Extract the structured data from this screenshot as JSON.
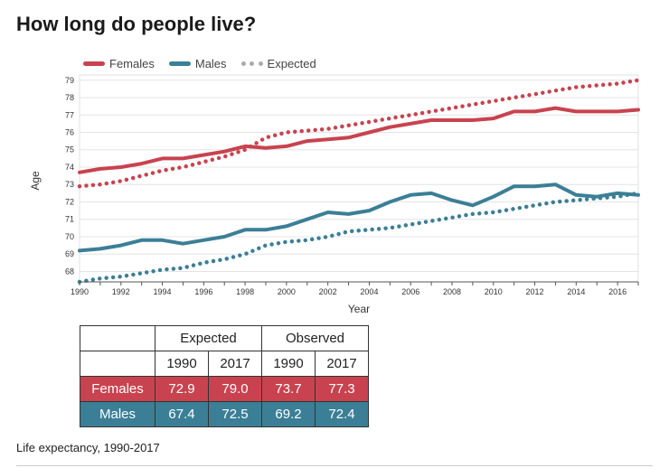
{
  "page": {
    "title": "How long do people live?",
    "caption": "Life expectancy, 1990-2017"
  },
  "legend": [
    {
      "label": "Females",
      "color": "#c8434f",
      "style": "solid"
    },
    {
      "label": "Males",
      "color": "#3b7f96",
      "style": "solid"
    },
    {
      "label": "Expected",
      "color": "#aaaaaa",
      "style": "dotted"
    }
  ],
  "table": {
    "groups": [
      "Expected",
      "Observed"
    ],
    "years": [
      "1990",
      "2017",
      "1990",
      "2017"
    ],
    "rows": [
      {
        "label": "Females",
        "values": [
          "72.9",
          "79.0",
          "73.7",
          "77.3"
        ],
        "color": "#c8434f"
      },
      {
        "label": "Males",
        "values": [
          "67.4",
          "72.5",
          "69.2",
          "72.4"
        ],
        "color": "#3b7f96"
      }
    ]
  },
  "chart_data": {
    "type": "line",
    "xlabel": "Year",
    "ylabel": "Age",
    "xlim": [
      1990,
      2017
    ],
    "ylim": [
      67.4,
      79.3
    ],
    "xticks": [
      1990,
      1992,
      1994,
      1996,
      1998,
      2000,
      2002,
      2004,
      2006,
      2008,
      2010,
      2012,
      2014,
      2016
    ],
    "yticks": [
      68,
      69,
      70,
      71,
      72,
      73,
      74,
      75,
      76,
      77,
      78,
      79
    ],
    "x": [
      1990,
      1991,
      1992,
      1993,
      1994,
      1995,
      1996,
      1997,
      1998,
      1999,
      2000,
      2001,
      2002,
      2003,
      2004,
      2005,
      2006,
      2007,
      2008,
      2009,
      2010,
      2011,
      2012,
      2013,
      2014,
      2015,
      2016,
      2017
    ],
    "series": [
      {
        "name": "Females",
        "style": "solid",
        "color": "#c8434f",
        "values": [
          73.7,
          73.9,
          74.0,
          74.2,
          74.5,
          74.5,
          74.7,
          74.9,
          75.2,
          75.1,
          75.2,
          75.5,
          75.6,
          75.7,
          76.0,
          76.3,
          76.5,
          76.7,
          76.7,
          76.7,
          76.8,
          77.2,
          77.2,
          77.4,
          77.2,
          77.2,
          77.2,
          77.3
        ]
      },
      {
        "name": "Males",
        "style": "solid",
        "color": "#3b7f96",
        "values": [
          69.2,
          69.3,
          69.5,
          69.8,
          69.8,
          69.6,
          69.8,
          70.0,
          70.4,
          70.4,
          70.6,
          71.0,
          71.4,
          71.3,
          71.5,
          72.0,
          72.4,
          72.5,
          72.1,
          71.8,
          72.3,
          72.9,
          72.9,
          73.0,
          72.4,
          72.3,
          72.5,
          72.4
        ]
      },
      {
        "name": "Expected",
        "style": "dotted",
        "color": "#c8434f",
        "values": [
          72.9,
          73.0,
          73.2,
          73.5,
          73.8,
          74.0,
          74.3,
          74.6,
          75.0,
          75.7,
          76.0,
          76.1,
          76.2,
          76.4,
          76.6,
          76.8,
          77.0,
          77.2,
          77.4,
          77.6,
          77.8,
          78.0,
          78.2,
          78.4,
          78.6,
          78.7,
          78.8,
          79.0
        ]
      },
      {
        "name": "Expected",
        "style": "dotted",
        "color": "#3b7f96",
        "values": [
          67.4,
          67.6,
          67.7,
          67.9,
          68.1,
          68.2,
          68.5,
          68.7,
          69.0,
          69.5,
          69.7,
          69.8,
          70.0,
          70.3,
          70.4,
          70.5,
          70.7,
          70.9,
          71.1,
          71.3,
          71.4,
          71.6,
          71.8,
          72.0,
          72.1,
          72.2,
          72.3,
          72.5
        ]
      }
    ]
  }
}
